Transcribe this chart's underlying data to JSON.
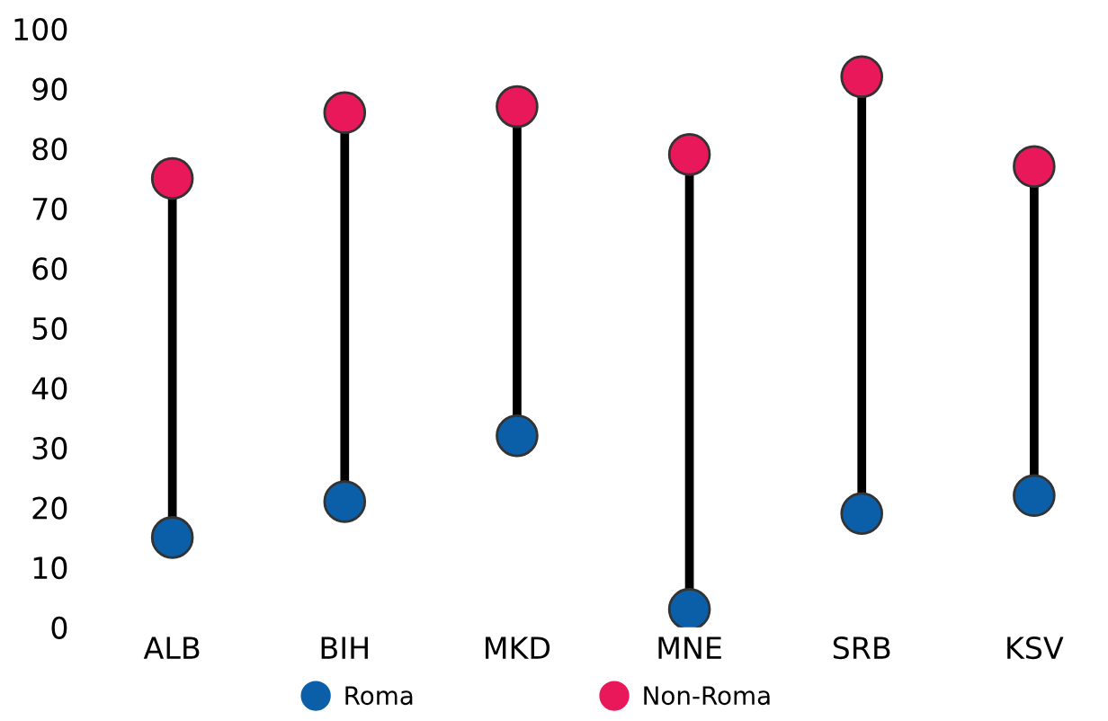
{
  "chart_data": {
    "type": "scatter",
    "categories": [
      "ALB",
      "BIH",
      "MKD",
      "MNE",
      "SRB",
      "KSV"
    ],
    "series": [
      {
        "name": "Roma",
        "color": "#0a5fa8",
        "values": [
          15,
          21,
          32,
          3,
          19,
          22
        ]
      },
      {
        "name": "Non-Roma",
        "color": "#e8185a",
        "values": [
          75,
          86,
          87,
          79,
          92,
          77
        ]
      }
    ],
    "ylim": [
      0,
      100
    ],
    "yticks": [
      0,
      10,
      20,
      30,
      40,
      50,
      60,
      70,
      80,
      90,
      100
    ],
    "marker": "circle",
    "legend": "bottom"
  }
}
